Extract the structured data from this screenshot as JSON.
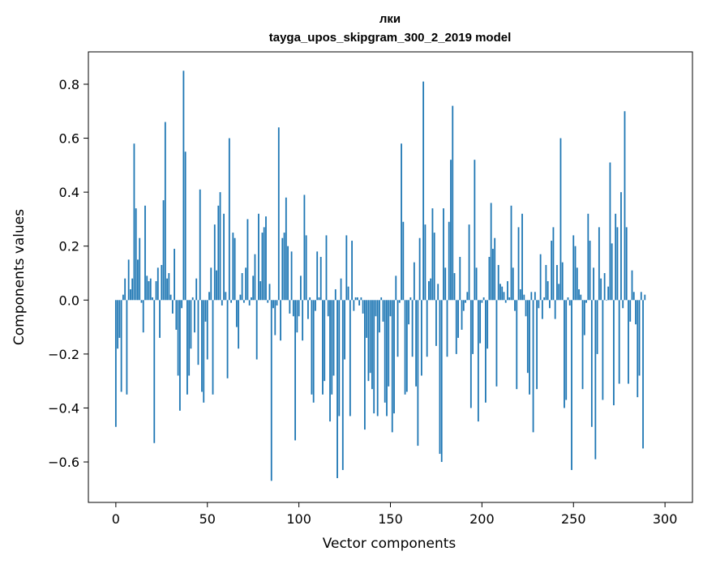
{
  "chart_data": {
    "type": "bar",
    "title": "лки",
    "subtitle": "tayga_upos_skipgram_300_2_2019 model",
    "xlabel": "Vector components",
    "ylabel": "Components values",
    "xlim": [
      -15,
      315
    ],
    "ylim": [
      -0.75,
      0.92
    ],
    "xticks": [
      0,
      50,
      100,
      150,
      200,
      250,
      300
    ],
    "yticks": [
      -0.6,
      -0.4,
      -0.2,
      0.0,
      0.2,
      0.4,
      0.6,
      0.8
    ],
    "xtick_labels": [
      "0",
      "50",
      "100",
      "150",
      "200",
      "250",
      "300"
    ],
    "ytick_labels": [
      "−0.6",
      "−0.4",
      "−0.2",
      "0.0",
      "0.2",
      "0.4",
      "0.6",
      "0.8"
    ],
    "bar_color": "#1f77b4",
    "grid": false,
    "values": [
      -0.47,
      -0.18,
      -0.14,
      -0.34,
      0.02,
      0.08,
      -0.35,
      0.15,
      0.04,
      0.08,
      0.58,
      0.34,
      0.15,
      0.23,
      -0.01,
      -0.12,
      0.35,
      0.09,
      0.07,
      0.08,
      0.01,
      -0.53,
      0.07,
      0.12,
      -0.14,
      0.13,
      0.37,
      0.66,
      0.08,
      0.1,
      0.02,
      -0.05,
      0.19,
      -0.11,
      -0.28,
      -0.41,
      -0.03,
      0.85,
      0.55,
      -0.35,
      -0.28,
      -0.18,
      0.01,
      -0.12,
      0.08,
      -0.24,
      0.41,
      -0.34,
      -0.38,
      -0.08,
      -0.22,
      0.03,
      0.12,
      -0.35,
      0.28,
      0.11,
      0.35,
      0.4,
      -0.02,
      0.32,
      0.03,
      -0.29,
      0.6,
      -0.01,
      0.25,
      0.23,
      -0.1,
      -0.18,
      0.02,
      0.1,
      -0.01,
      0.12,
      0.3,
      -0.02,
      0.01,
      0.09,
      0.17,
      -0.22,
      0.32,
      0.07,
      0.25,
      0.27,
      0.31,
      -0.01,
      0.06,
      -0.67,
      -0.03,
      -0.13,
      -0.02,
      0.64,
      -0.15,
      0.23,
      0.25,
      0.38,
      0.2,
      -0.05,
      0.18,
      -0.06,
      -0.52,
      -0.12,
      -0.06,
      0.09,
      -0.15,
      0.39,
      0.24,
      -0.07,
      0.01,
      -0.35,
      -0.38,
      -0.04,
      0.18,
      0.01,
      0.16,
      -0.35,
      -0.3,
      0.24,
      -0.06,
      -0.45,
      -0.35,
      -0.28,
      0.04,
      -0.66,
      -0.43,
      0.08,
      -0.63,
      -0.22,
      0.24,
      0.05,
      -0.43,
      0.22,
      -0.04,
      0.01,
      0.01,
      -0.02,
      0.01,
      -0.05,
      -0.48,
      -0.14,
      -0.3,
      -0.27,
      -0.33,
      -0.42,
      -0.06,
      -0.43,
      -0.12,
      0.01,
      -0.08,
      -0.38,
      -0.43,
      -0.32,
      -0.06,
      -0.49,
      -0.42,
      0.09,
      -0.21,
      -0.01,
      0.58,
      0.29,
      -0.35,
      -0.34,
      -0.09,
      0.01,
      -0.21,
      0.14,
      -0.32,
      -0.54,
      0.23,
      -0.28,
      0.81,
      0.28,
      -0.21,
      0.07,
      0.08,
      0.34,
      0.25,
      -0.17,
      0.06,
      -0.57,
      -0.6,
      0.34,
      0.12,
      -0.21,
      0.29,
      0.52,
      0.72,
      0.1,
      -0.2,
      -0.14,
      0.16,
      -0.11,
      -0.04,
      -0.01,
      0.03,
      0.28,
      -0.4,
      -0.2,
      0.52,
      0.12,
      -0.45,
      -0.16,
      -0.01,
      0.01,
      -0.38,
      -0.18,
      0.16,
      0.36,
      0.19,
      0.23,
      -0.32,
      0.13,
      0.06,
      0.05,
      0.03,
      -0.01,
      0.07,
      0.01,
      0.35,
      0.12,
      -0.04,
      -0.33,
      0.27,
      0.04,
      0.32,
      0.02,
      -0.06,
      -0.27,
      -0.35,
      0.03,
      -0.49,
      0.03,
      -0.33,
      -0.03,
      0.17,
      -0.07,
      0.01,
      0.13,
      0.07,
      -0.03,
      0.22,
      0.27,
      -0.07,
      0.13,
      0.06,
      0.6,
      0.14,
      -0.4,
      -0.37,
      0.01,
      -0.02,
      -0.63,
      0.24,
      0.2,
      0.12,
      0.04,
      0.02,
      -0.33,
      -0.13,
      -0.01,
      0.32,
      0.22,
      -0.47,
      0.12,
      -0.59,
      -0.2,
      0.27,
      0.08,
      -0.37,
      0.1,
      0.0,
      0.05,
      0.51,
      0.21,
      -0.39,
      0.32,
      0.27,
      -0.31,
      0.4,
      -0.03,
      0.7,
      0.27,
      -0.31,
      -0.08,
      0.11,
      0.03,
      -0.09,
      -0.36,
      -0.28,
      0.03,
      -0.55,
      0.02
    ]
  }
}
